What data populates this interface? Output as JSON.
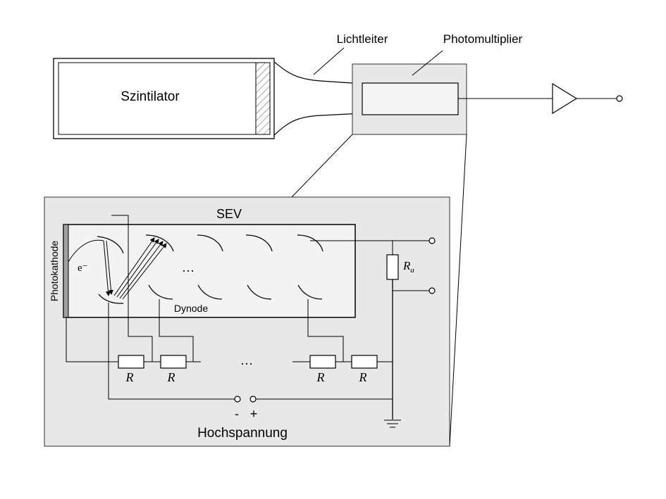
{
  "labels": {
    "scintillator": "Szintilator",
    "light_guide": "Lichtleiter",
    "photomultiplier": "Photomultiplier",
    "sev": "SEV",
    "photocathode": "Photokathode",
    "electron": "e⁻",
    "ellipsis_dynodes": "…",
    "dynode": "Dynode",
    "resistor_r": "R",
    "ellipsis_resistors": "…",
    "anode_resistor": "R",
    "anode_resistor_sub": "a",
    "minus": "-",
    "plus": "+",
    "high_voltage": "Hochspannung"
  },
  "colors": {
    "line": "#000000",
    "panel_fill": "#e8e8e8",
    "tube_fill": "#f2f2f2",
    "cathode_fill": "#a0a0a0"
  },
  "icons": {
    "amplifier": "triangle-amplifier-icon",
    "ground": "ground-icon",
    "terminal": "open-circle-terminal-icon"
  }
}
